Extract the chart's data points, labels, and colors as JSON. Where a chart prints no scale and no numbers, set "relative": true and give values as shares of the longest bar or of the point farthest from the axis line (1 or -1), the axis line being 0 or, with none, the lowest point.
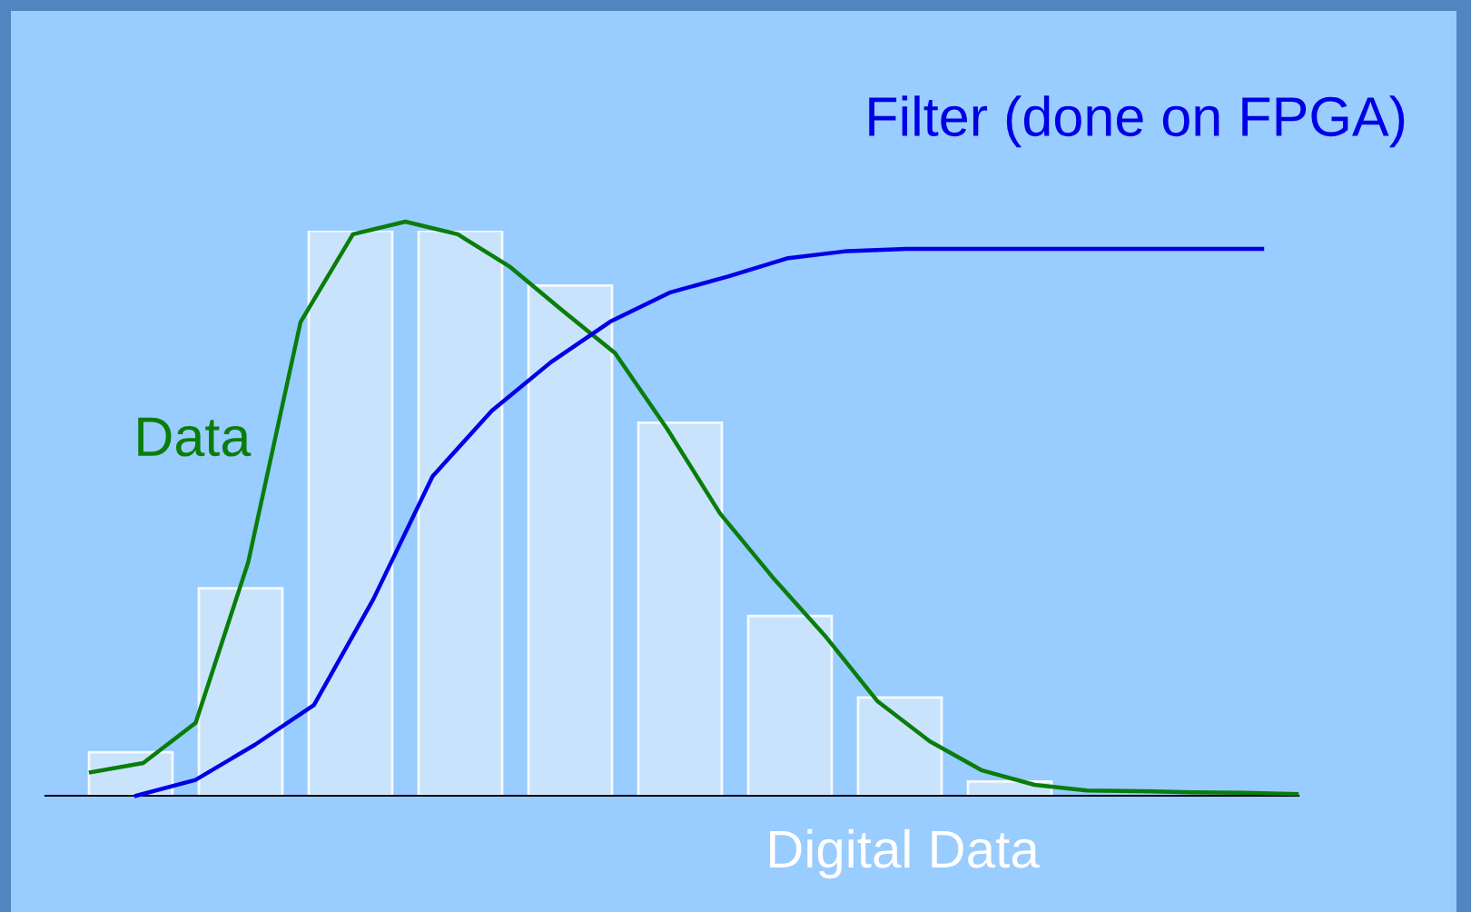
{
  "chart_data": [
    {
      "type": "bar",
      "relative": true,
      "xlabel": "Digital Data",
      "categories": [
        null,
        null,
        null,
        null,
        null,
        null,
        null,
        null,
        null
      ],
      "series": [
        {
          "color": "#cfe6fd",
          "values": [
            0.077,
            0.367,
            1,
            1,
            0.903,
            0.66,
            0.318,
            0.174,
            0.025
          ]
        }
      ]
    },
    {
      "type": "line",
      "relative": true,
      "categories": [
        null,
        null,
        null,
        null,
        null,
        null,
        null,
        null,
        null,
        null,
        null,
        null,
        null,
        null,
        null,
        null,
        null,
        null,
        null,
        null,
        null,
        null,
        null,
        null
      ],
      "series": [
        {
          "name": "Data",
          "color": "#0a7d0a",
          "values": [
            0.041,
            0.057,
            0.127,
            0.406,
            0.825,
            0.978,
            1,
            0.978,
            0.921,
            0.845,
            0.771,
            0.638,
            0.492,
            0.381,
            0.279,
            0.165,
            0.095,
            0.044,
            0.019,
            0.009,
            0.008,
            0.006,
            0.005,
            0.003
          ]
        }
      ]
    },
    {
      "type": "line",
      "relative": true,
      "categories": [
        null,
        null,
        null,
        null,
        null,
        null,
        null,
        null,
        null,
        null,
        null,
        null,
        null,
        null,
        null,
        null,
        null,
        null,
        null,
        null
      ],
      "series": [
        {
          "name": "Filter (done on FPGA)",
          "color": "#0000e6",
          "values": [
            0,
            0.029,
            0.093,
            0.166,
            0.359,
            0.584,
            0.704,
            0.793,
            0.867,
            0.92,
            0.95,
            0.983,
            0.996,
            1,
            1,
            1,
            1,
            1,
            1,
            1
          ]
        }
      ]
    }
  ]
}
